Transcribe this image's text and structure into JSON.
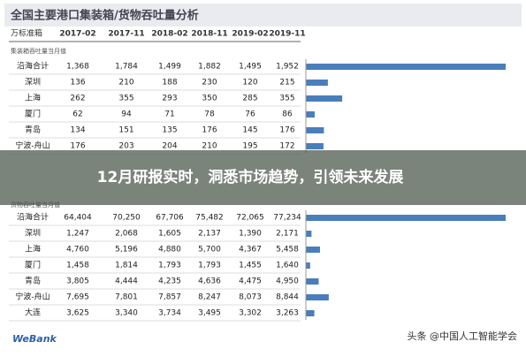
{
  "header": {
    "title": "全国主要港口集装箱/货物吞吐量分析"
  },
  "tables": [
    {
      "unit": "万标准箱",
      "columns": [
        "2017-02",
        "2017-11",
        "2018-02",
        "2018-11",
        "2019-02",
        "2019-11"
      ],
      "subtitle": "集装箱吞吐量当月值",
      "rows": [
        [
          "沿海合计",
          "1,368",
          "1,784",
          "1,499",
          "1,882",
          "1,495",
          "1,952"
        ],
        [
          "深圳",
          "136",
          "210",
          "188",
          "230",
          "120",
          "215"
        ],
        [
          "上海",
          "262",
          "355",
          "293",
          "350",
          "285",
          "355"
        ],
        [
          "厦门",
          "62",
          "94",
          "71",
          "78",
          "76",
          "86"
        ],
        [
          "青岛",
          "134",
          "151",
          "135",
          "176",
          "145",
          "176"
        ],
        [
          "宁波-舟山",
          "176",
          "203",
          "204",
          "210",
          "195",
          "172"
        ]
      ]
    },
    {
      "subtitle": "货物吞吐量当月值",
      "rows": [
        [
          "沿海合计",
          "64,404",
          "70,250",
          "67,706",
          "75,482",
          "72,065",
          "77,234"
        ],
        [
          "深圳",
          "1,247",
          "2,068",
          "1,605",
          "2,137",
          "1,390",
          "2,171"
        ],
        [
          "上海",
          "4,760",
          "5,196",
          "4,880",
          "5,700",
          "4,367",
          "5,458"
        ],
        [
          "厦门",
          "1,458",
          "1,814",
          "1,793",
          "1,793",
          "1,455",
          "1,640"
        ],
        [
          "青岛",
          "3,805",
          "4,444",
          "4,235",
          "4,636",
          "4,475",
          "4,950"
        ],
        [
          "宁波-舟山",
          "7,695",
          "7,801",
          "7,857",
          "8,247",
          "8,073",
          "8,844"
        ],
        [
          "大连",
          "3,625",
          "3,340",
          "3,734",
          "3,495",
          "3,302",
          "3,263"
        ]
      ]
    }
  ],
  "banner": "12月研报实时，洞悉市场趋势，引领未来发展",
  "footer": {
    "logo": "WeBank",
    "credit": "头条 @中国人工智能学会"
  }
}
